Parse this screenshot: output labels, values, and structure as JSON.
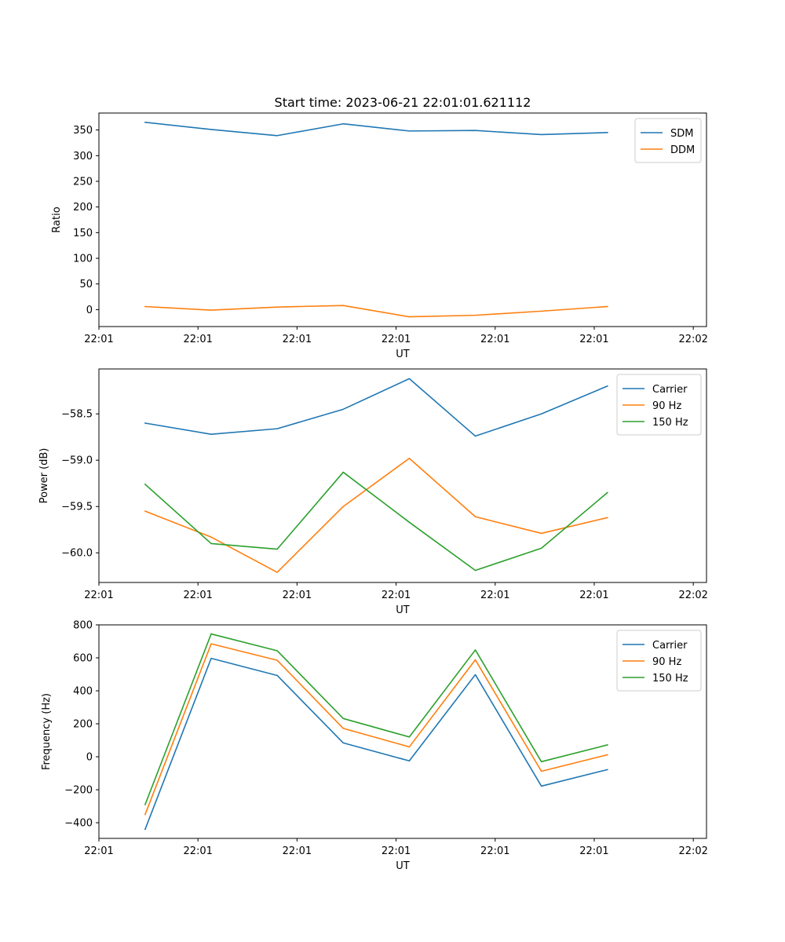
{
  "figure": {
    "title": "Start time: 2023-06-21 22:01:01.621112"
  },
  "colors": {
    "blue": "#1f77b4",
    "orange": "#ff7f0e",
    "green": "#2ca02c",
    "axis": "#000000"
  },
  "chart_data": [
    {
      "type": "line",
      "title": "Start time: 2023-06-21 22:01:01.621112",
      "xlabel": "UT",
      "ylabel": "Ratio",
      "x": [
        1,
        2,
        3,
        4,
        5,
        6,
        7,
        8
      ],
      "xlim": [
        0.3,
        9.5
      ],
      "xticks": [
        0.3,
        1.8,
        3.3,
        4.8,
        6.3,
        7.8,
        9.3
      ],
      "xtick_labels": [
        "22:01",
        "22:01",
        "22:01",
        "22:01",
        "22:01",
        "22:01",
        "22:02"
      ],
      "ylim": [
        -33,
        383
      ],
      "yticks": [
        0,
        50,
        100,
        150,
        200,
        250,
        300,
        350
      ],
      "ytick_labels": [
        "0",
        "50",
        "100",
        "150",
        "200",
        "250",
        "300",
        "350"
      ],
      "legend": "upper right",
      "series": [
        {
          "name": "SDM",
          "color": "#1f77b4",
          "values": [
            365,
            351,
            339,
            362,
            348,
            349,
            341,
            345
          ]
        },
        {
          "name": "DDM",
          "color": "#ff7f0e",
          "values": [
            6,
            -1,
            5,
            8,
            -14,
            -11,
            -3,
            6
          ]
        }
      ]
    },
    {
      "type": "line",
      "xlabel": "UT",
      "ylabel": "Power (dB)",
      "x": [
        1,
        2,
        3,
        4,
        5,
        6,
        7,
        8
      ],
      "xlim": [
        0.3,
        9.5
      ],
      "xticks": [
        0.3,
        1.8,
        3.3,
        4.8,
        6.3,
        7.8,
        9.3
      ],
      "xtick_labels": [
        "22:01",
        "22:01",
        "22:01",
        "22:01",
        "22:01",
        "22:01",
        "22:02"
      ],
      "ylim": [
        -60.32,
        -58.015
      ],
      "yticks": [
        -60.0,
        -59.5,
        -59.0,
        -58.5
      ],
      "ytick_labels": [
        "−60.0",
        "−59.5",
        "−59.0",
        "−58.5"
      ],
      "legend": "upper right",
      "series": [
        {
          "name": "Carrier",
          "color": "#1f77b4",
          "values": [
            -58.6,
            -58.72,
            -58.66,
            -58.45,
            -58.12,
            -58.74,
            -58.5,
            -58.2
          ]
        },
        {
          "name": "90 Hz",
          "color": "#ff7f0e",
          "values": [
            -59.55,
            -59.83,
            -60.21,
            -59.5,
            -58.98,
            -59.61,
            -59.79,
            -59.62
          ]
        },
        {
          "name": "150 Hz",
          "color": "#2ca02c",
          "values": [
            -59.26,
            -59.9,
            -59.96,
            -59.13,
            -59.67,
            -60.19,
            -59.95,
            -59.35
          ]
        }
      ]
    },
    {
      "type": "line",
      "xlabel": "UT",
      "ylabel": "Frequency (Hz)",
      "x": [
        1,
        2,
        3,
        4,
        5,
        6,
        7,
        8
      ],
      "xlim": [
        0.3,
        9.5
      ],
      "xticks": [
        0.3,
        1.8,
        3.3,
        4.8,
        6.3,
        7.8,
        9.3
      ],
      "xtick_labels": [
        "22:01",
        "22:01",
        "22:01",
        "22:01",
        "22:01",
        "22:01",
        "22:02"
      ],
      "ylim": [
        -495,
        800
      ],
      "yticks": [
        -400,
        -200,
        0,
        200,
        400,
        600,
        800
      ],
      "ytick_labels": [
        "−400",
        "−200",
        "0",
        "200",
        "400",
        "600",
        "800"
      ],
      "legend": "upper right",
      "series": [
        {
          "name": "Carrier",
          "color": "#1f77b4",
          "values": [
            -440,
            597,
            493,
            84,
            -25,
            498,
            -178,
            -78
          ]
        },
        {
          "name": "90 Hz",
          "color": "#ff7f0e",
          "values": [
            -350,
            685,
            585,
            172,
            60,
            588,
            -88,
            12
          ]
        },
        {
          "name": "150 Hz",
          "color": "#2ca02c",
          "values": [
            -290,
            745,
            643,
            232,
            120,
            648,
            -30,
            72
          ]
        }
      ]
    }
  ]
}
